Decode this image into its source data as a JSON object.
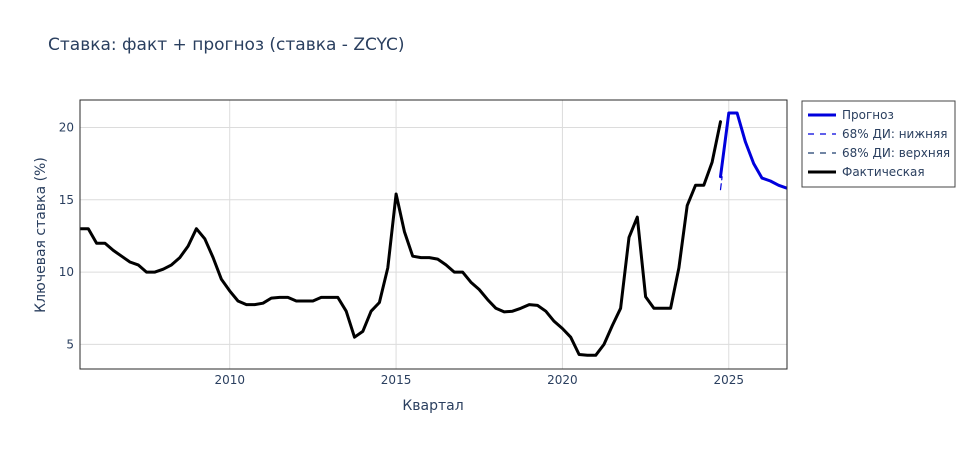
{
  "chart_data": {
    "type": "line",
    "title": "Ставка: факт + прогноз (ставка - ZCYC)",
    "xlabel": "Квартал",
    "ylabel": "Ключевая ставка (%)",
    "xlim": [
      2005.5,
      2026.75
    ],
    "ylim": [
      3.3,
      21.9
    ],
    "x_ticks": [
      2010,
      2015,
      2020,
      2025
    ],
    "y_ticks": [
      5,
      10,
      15,
      20
    ],
    "grid": true,
    "legend_position": "right",
    "series": [
      {
        "name": "Прогноз",
        "color": "#0000dd",
        "dash": "solid",
        "x": [
          2024.75,
          2025.0,
          2025.25,
          2025.5,
          2025.75,
          2026.0,
          2026.25,
          2026.5,
          2026.75
        ],
        "y": [
          16.6,
          21.0,
          21.0,
          19.0,
          17.5,
          16.5,
          16.3,
          16.0,
          15.8
        ]
      },
      {
        "name": "68% ДИ: нижняя",
        "color": "#0000dd",
        "dash": "dash",
        "x": [
          2024.75,
          2024.8
        ],
        "y": [
          15.7,
          16.6
        ]
      },
      {
        "name": "68% ДИ: верхняя",
        "color": "#1c3c6e",
        "dash": "dash",
        "x": [
          2024.75,
          2024.8
        ],
        "y": [
          16.6,
          17.4
        ]
      },
      {
        "name": "Фактическая",
        "color": "#000000",
        "dash": "solid",
        "x": [
          2005.5,
          2005.75,
          2006.0,
          2006.25,
          2006.5,
          2006.75,
          2007.0,
          2007.25,
          2007.5,
          2007.75,
          2008.0,
          2008.25,
          2008.5,
          2008.75,
          2009.0,
          2009.25,
          2009.5,
          2009.75,
          2010.0,
          2010.25,
          2010.5,
          2010.75,
          2011.0,
          2011.25,
          2011.5,
          2011.75,
          2012.0,
          2012.25,
          2012.5,
          2012.75,
          2013.0,
          2013.25,
          2013.5,
          2013.75,
          2014.0,
          2014.25,
          2014.5,
          2014.75,
          2015.0,
          2015.25,
          2015.5,
          2015.75,
          2016.0,
          2016.25,
          2016.5,
          2016.75,
          2017.0,
          2017.25,
          2017.5,
          2017.75,
          2018.0,
          2018.25,
          2018.5,
          2018.75,
          2019.0,
          2019.25,
          2019.5,
          2019.75,
          2020.0,
          2020.25,
          2020.5,
          2020.75,
          2021.0,
          2021.25,
          2021.5,
          2021.75,
          2022.0,
          2022.25,
          2022.5,
          2022.75,
          2023.0,
          2023.25,
          2023.5,
          2023.75,
          2024.0,
          2024.25,
          2024.5,
          2024.75
        ],
        "y": [
          13.0,
          13.0,
          12.0,
          12.0,
          11.5,
          11.1,
          10.7,
          10.5,
          10.0,
          10.0,
          10.2,
          10.5,
          11.0,
          11.8,
          13.0,
          12.3,
          11.0,
          9.5,
          8.7,
          8.0,
          7.75,
          7.75,
          7.85,
          8.2,
          8.25,
          8.25,
          8.0,
          8.0,
          8.0,
          8.25,
          8.25,
          8.25,
          7.3,
          5.5,
          5.9,
          7.3,
          7.9,
          10.3,
          15.4,
          12.8,
          11.1,
          11.0,
          11.0,
          10.9,
          10.5,
          10.0,
          10.0,
          9.3,
          8.8,
          8.1,
          7.5,
          7.25,
          7.3,
          7.5,
          7.75,
          7.7,
          7.3,
          6.6,
          6.1,
          5.5,
          4.3,
          4.25,
          4.25,
          5.0,
          6.3,
          7.5,
          12.4,
          13.8,
          8.3,
          7.5,
          7.5,
          7.5,
          10.3,
          14.6,
          16.0,
          16.0,
          17.6,
          20.4
        ]
      }
    ]
  }
}
